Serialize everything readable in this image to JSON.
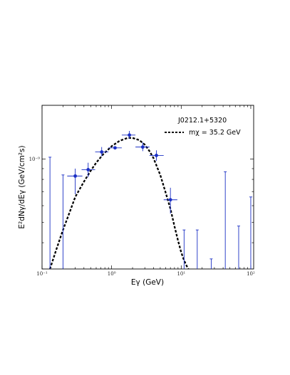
{
  "chart_data": {
    "type": "scatter",
    "xlabel": "Eγ (GeV)",
    "ylabel": "E²dNγ/dEγ (GeV/cm²s)",
    "x_scale": "log",
    "y_scale": "log",
    "xlim": [
      0.1,
      110
    ],
    "ylim": [
      3e-10,
      1.8e-09
    ],
    "x_ticks": [
      {
        "value": 0.1,
        "label": "10⁻¹"
      },
      {
        "value": 1,
        "label": "10⁰"
      },
      {
        "value": 10,
        "label": "10¹"
      },
      {
        "value": 100,
        "label": "10²"
      }
    ],
    "y_ticks": [
      {
        "value": 1e-09,
        "label": "10⁻⁹"
      }
    ],
    "grid": false,
    "legend": {
      "position": "top-right",
      "title": "J0212.1+5320",
      "entries": [
        {
          "label": "mχ = 35.2 GeV",
          "style": "dashed",
          "color": "#000000"
        }
      ]
    },
    "series": [
      {
        "name": "",
        "color": "#1a2fc4",
        "kind": "errorbar",
        "points": [
          {
            "x": 0.3,
            "y": 8.3e-10,
            "xerr": [
              0.23,
              0.38
            ],
            "yerr": [
              6.8e-10,
              9e-10
            ]
          },
          {
            "x": 0.46,
            "y": 8.9e-10,
            "xerr": [
              0.37,
              0.58
            ],
            "yerr": [
              8.2e-10,
              9.6e-10
            ]
          },
          {
            "x": 0.72,
            "y": 1.08e-09,
            "xerr": [
              0.58,
              0.9
            ],
            "yerr": [
              1.03e-09,
              1.14e-09
            ]
          },
          {
            "x": 1.12,
            "y": 1.13e-09,
            "xerr": [
              0.9,
              1.4
            ],
            "yerr": [
              1.11e-09,
              1.15e-09
            ]
          },
          {
            "x": 1.8,
            "y": 1.3e-09,
            "xerr": [
              1.4,
              2.2
            ],
            "yerr": [
              1.25e-09,
              1.36e-09
            ]
          },
          {
            "x": 2.8,
            "y": 1.14e-09,
            "xerr": [
              2.2,
              3.5
            ],
            "yerr": [
              1.09e-09,
              1.2e-09
            ]
          },
          {
            "x": 4.4,
            "y": 1.04e-09,
            "xerr": [
              3.5,
              5.6
            ],
            "yerr": [
              9.8e-10,
              1.1e-09
            ]
          },
          {
            "x": 7.0,
            "y": 6.4e-10,
            "xerr": [
              5.6,
              8.8
            ],
            "yerr": [
              5.5e-10,
              7.3e-10
            ]
          }
        ]
      },
      {
        "name": "",
        "color": "#1a2fc4",
        "kind": "upper-limit",
        "points": [
          {
            "x": 0.13,
            "y_top": 1.02e-09
          },
          {
            "x": 0.2,
            "y_top": 8.4e-10
          },
          {
            "x": 11,
            "y_top": 4.6e-10
          },
          {
            "x": 17,
            "y_top": 4.6e-10
          },
          {
            "x": 27,
            "y_top": 3.35e-10
          },
          {
            "x": 43,
            "y_top": 8.7e-10
          },
          {
            "x": 67,
            "y_top": 4.8e-10
          },
          {
            "x": 100,
            "y_top": 6.6e-10
          }
        ]
      },
      {
        "name": "mχ = 35.2 GeV",
        "color": "#000000",
        "kind": "curve",
        "x": [
          0.13,
          0.16,
          0.2,
          0.25,
          0.3,
          0.4,
          0.5,
          0.6,
          0.75,
          1.0,
          1.3,
          1.7,
          2.0,
          2.5,
          3.0,
          3.5,
          4.0,
          5.0,
          6.0,
          7.0,
          8.0,
          9.0,
          10.0,
          11.0,
          12.0,
          12.7
        ],
        "y": [
          3e-10,
          3.7e-10,
          4.6e-10,
          5.6e-10,
          6.6e-10,
          7.8e-10,
          8.8e-10,
          9.6e-10,
          1.05e-09,
          1.15e-09,
          1.22e-09,
          1.26e-09,
          1.26e-09,
          1.23e-09,
          1.17e-09,
          1.09e-09,
          1.01e-09,
          8.4e-10,
          6.9e-10,
          5.8e-10,
          4.8e-10,
          4.1e-10,
          3.6e-10,
          3.3e-10,
          3.1e-10,
          3e-10
        ]
      }
    ]
  }
}
